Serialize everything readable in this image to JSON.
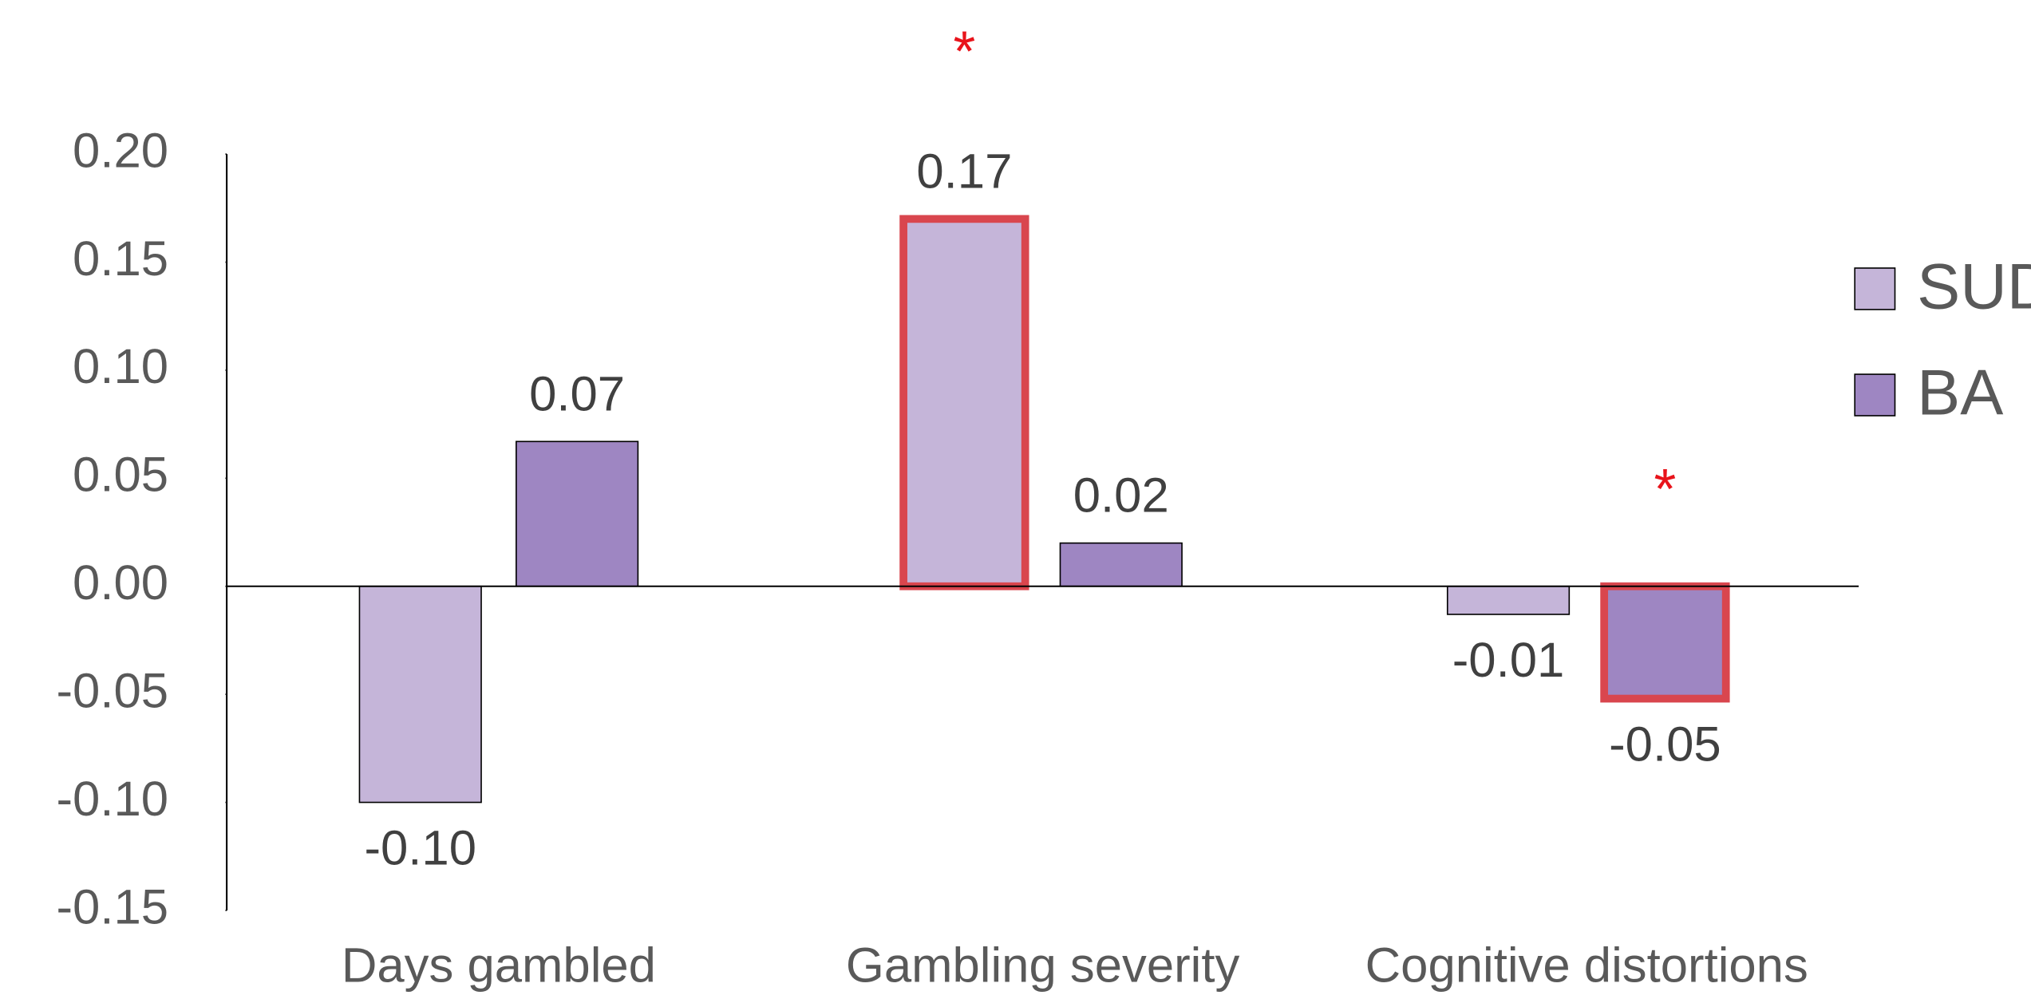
{
  "chart_data": {
    "type": "bar",
    "categories": [
      "Days gambled",
      "Gambling severity",
      "Cognitive distortions"
    ],
    "series": [
      {
        "name": "SUD",
        "color": "#c5b5d9",
        "values": [
          -0.1,
          0.17,
          -0.013
        ],
        "value_labels": [
          "-0.10",
          "0.17",
          "-0.01"
        ]
      },
      {
        "name": "BA",
        "color": "#9e86c2",
        "values": [
          0.067,
          0.02,
          -0.052
        ],
        "value_labels": [
          "0.07",
          "0.02",
          "-0.05"
        ]
      }
    ],
    "ylim": [
      -0.15,
      0.2
    ],
    "yticks": [
      {
        "value": 0.2,
        "label": "0.20"
      },
      0.15,
      {
        "value": 0.1,
        "label": "0.10"
      },
      0.05,
      {
        "value": 0,
        "label": "0.00"
      },
      -0.05,
      {
        "value": -0.1,
        "label": "-0.10"
      },
      -0.15
    ],
    "grid": false,
    "legend": "right",
    "annotations": [
      {
        "text": "*",
        "series": "SUD",
        "category": "Gambling severity",
        "color": "#e8141b",
        "highlight_color": "#d9464e"
      },
      {
        "text": "*",
        "series": "BA",
        "category": "Cognitive distortions",
        "color": "#e8141b",
        "highlight_color": "#d9464e"
      }
    ]
  }
}
